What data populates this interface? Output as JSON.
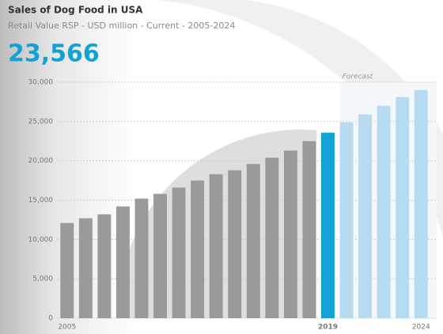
{
  "chart_data": {
    "type": "bar",
    "title": "Sales of Dog Food in USA",
    "subtitle": "Retail Value RSP - USD million - Current - 2005-2024",
    "headline": "23,566",
    "annotation": "Forecast",
    "categories": [
      "2005",
      null,
      null,
      null,
      null,
      null,
      null,
      null,
      null,
      null,
      null,
      null,
      null,
      null,
      "2019",
      null,
      null,
      null,
      null,
      "2024"
    ],
    "values": [
      12100,
      12700,
      13200,
      14200,
      15200,
      15800,
      16600,
      17500,
      18300,
      18800,
      19600,
      20400,
      21300,
      22500,
      23566,
      24900,
      25900,
      27000,
      28100,
      29000
    ],
    "colors": [
      "#9a9a9a",
      "#9a9a9a",
      "#9a9a9a",
      "#9a9a9a",
      "#9a9a9a",
      "#9a9a9a",
      "#9a9a9a",
      "#9a9a9a",
      "#9a9a9a",
      "#9a9a9a",
      "#9a9a9a",
      "#9a9a9a",
      "#9a9a9a",
      "#9a9a9a",
      "#12a3d4",
      "#b7dcf1",
      "#b7dcf1",
      "#b7dcf1",
      "#b7dcf1",
      "#b7dcf1"
    ],
    "ylim": [
      0,
      30000
    ],
    "yticks": [
      0,
      {
        "value": 5000,
        "label": "5,000"
      },
      {
        "value": 10000,
        "label": "10,000"
      },
      {
        "value": 15000,
        "label": "15,000"
      },
      {
        "value": 20000,
        "label": "20,000"
      },
      {
        "value": 25000,
        "label": "25,000"
      },
      {
        "value": 30000,
        "label": "30,000"
      }
    ],
    "grid": true
  }
}
